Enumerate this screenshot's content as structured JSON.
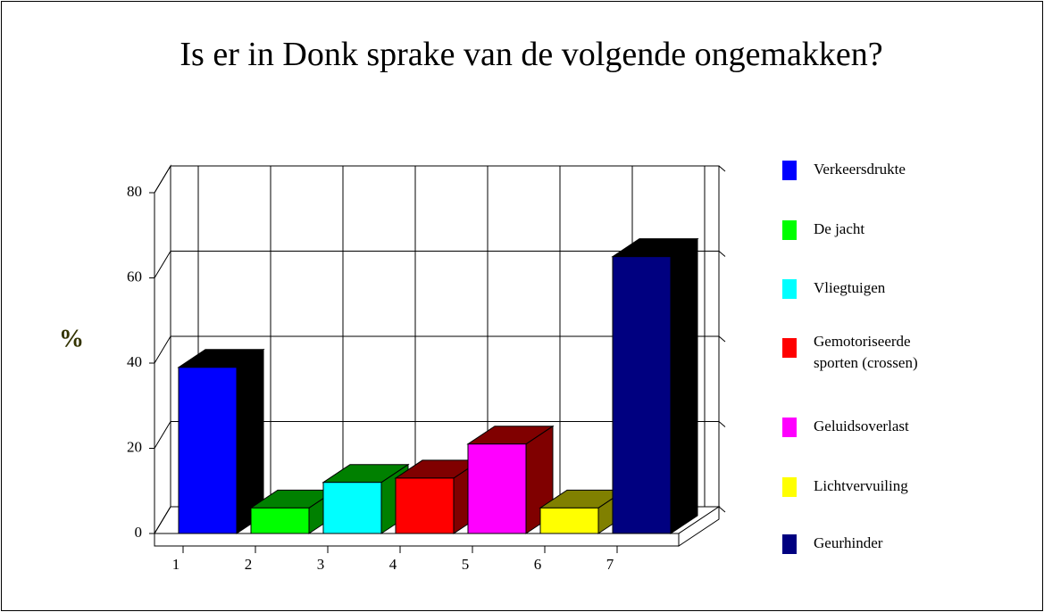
{
  "chart_data": {
    "type": "bar3d",
    "title": "Is er in Donk sprake van de volgende ongemakken?",
    "y_label": "%",
    "categories": [
      "1",
      "2",
      "3",
      "4",
      "5",
      "6",
      "7"
    ],
    "values": [
      39,
      6,
      12,
      13,
      21,
      6,
      65
    ],
    "colors": [
      "#0000ff",
      "#00ff00",
      "#00ffff",
      "#ff0000",
      "#ff00ff",
      "#ffff00",
      "#000080"
    ],
    "side_colors": [
      "#000000",
      "#008000",
      "#008000",
      "#800000",
      "#800000",
      "#808000",
      "#000000"
    ],
    "legend": [
      "Verkeersdrukte",
      "De jacht",
      "Vliegtuigen",
      "Gemotoriseerde sporten (crossen)",
      "Geluidsoverlast",
      "Lichtvervuiling",
      "Geurhinder"
    ],
    "ylim": [
      0,
      80
    ],
    "yticks": [
      0,
      20,
      40,
      60,
      80
    ],
    "grid": true
  }
}
